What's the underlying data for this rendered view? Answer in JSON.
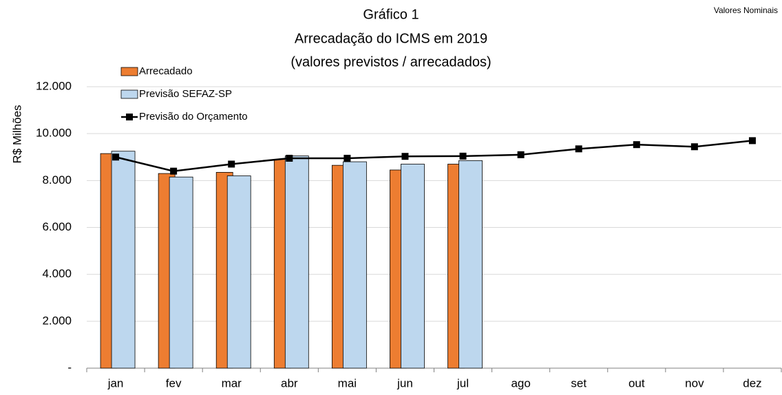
{
  "chart_data": {
    "type": "combo",
    "title": [
      "Gráfico 1",
      "Arrecadação do ICMS em 2019",
      "(valores previstos / arrecadados)"
    ],
    "note": "Valores Nominais",
    "ylabel": "R$ Milhões",
    "categories": [
      "jan",
      "fev",
      "mar",
      "abr",
      "mai",
      "jun",
      "jul",
      "ago",
      "set",
      "out",
      "nov",
      "dez"
    ],
    "series": [
      {
        "name": "Arrecadado",
        "type": "bar",
        "color": "#ed7d31",
        "values": [
          9150,
          8300,
          8350,
          8900,
          8650,
          8450,
          8700,
          null,
          null,
          null,
          null,
          null
        ]
      },
      {
        "name": "Previsão SEFAZ-SP",
        "type": "bar",
        "color": "#bdd7ee",
        "values": [
          9250,
          8150,
          8200,
          9050,
          8800,
          8700,
          8850,
          null,
          null,
          null,
          null,
          null
        ]
      },
      {
        "name": "Previsão do Orçamento",
        "type": "line",
        "color": "#000000",
        "values": [
          9000,
          8400,
          8700,
          8950,
          8950,
          9030,
          9040,
          9100,
          9350,
          9530,
          9440,
          9700
        ]
      }
    ],
    "ylim": [
      0,
      12000
    ],
    "yticks": [
      {
        "value": 0,
        "label": "-"
      },
      {
        "value": 2000,
        "label": "2.000"
      },
      {
        "value": 4000,
        "label": "4.000"
      },
      {
        "value": 6000,
        "label": "6.000"
      },
      {
        "value": 8000,
        "label": "8.000"
      },
      {
        "value": 10000,
        "label": "10.000"
      },
      {
        "value": 12000,
        "label": "12.000"
      }
    ],
    "grid": true
  }
}
